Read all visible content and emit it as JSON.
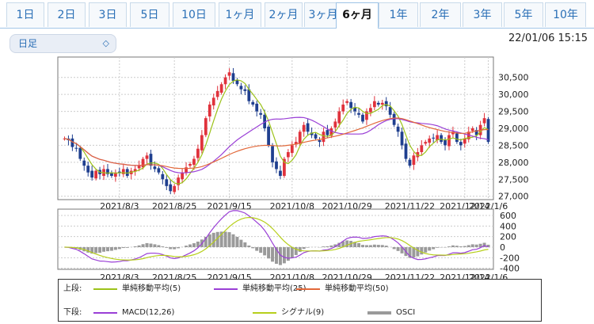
{
  "tabs": [
    {
      "label": "1日"
    },
    {
      "label": "2日"
    },
    {
      "label": "3日"
    },
    {
      "label": "5日"
    },
    {
      "label": "10日"
    },
    {
      "label": "1ヶ月"
    },
    {
      "label": "2ヶ月"
    },
    {
      "label": "3ヶ月"
    },
    {
      "label": "6ヶ月",
      "active": true
    },
    {
      "label": "1年"
    },
    {
      "label": "2年"
    },
    {
      "label": "3年"
    },
    {
      "label": "5年"
    },
    {
      "label": "10年"
    }
  ],
  "period_select": {
    "value": "日足",
    "icon": "updown-chevron-icon"
  },
  "timestamp": "22/01/06 15:15",
  "colors": {
    "up": "#e0323c",
    "down": "#1f3f8f",
    "ma5": "#9cc21a",
    "ma25": "#9a3fd6",
    "ma50": "#e2683a",
    "macd": "#9a3fd6",
    "signal": "#b7cf1c",
    "osci": "#9a9a9a"
  },
  "legend": {
    "upper_label": "上段:",
    "lower_label": "下段:",
    "upper": [
      {
        "name": "単純移動平均(5)",
        "color": "#9cc21a"
      },
      {
        "name": "単純移動平均(25)",
        "color": "#9a3fd6"
      },
      {
        "name": "単純移動平均(50)",
        "color": "#e2683a"
      }
    ],
    "lower": [
      {
        "name": "MACD(12,26)",
        "color": "#9a3fd6"
      },
      {
        "name": "シグナル(9)",
        "color": "#b7cf1c"
      },
      {
        "name": "OSCI",
        "color": "#9a9a9a"
      }
    ]
  },
  "chart_data": [
    {
      "type": "candlestick",
      "ylim": [
        26900,
        31100
      ],
      "y_ticks": [
        "27,000",
        "27,500",
        "28,000",
        "28,500",
        "29,000",
        "29,500",
        "30,000",
        "30,500"
      ],
      "x_tick_labels": [
        "2021/8/3",
        "2021/8/25",
        "2021/9/15",
        "2021/10/8",
        "2021/10/29",
        "2021/11/22",
        "2021/12/14",
        "2022/1/6"
      ],
      "grid": true,
      "closes": [
        28700,
        28650,
        28450,
        28400,
        28100,
        27900,
        27700,
        27550,
        27750,
        27650,
        27800,
        27650,
        27600,
        27700,
        27700,
        27800,
        27600,
        27750,
        27800,
        27900,
        28100,
        28200,
        27900,
        27800,
        27700,
        27500,
        27300,
        27150,
        27300,
        27550,
        27700,
        27850,
        27950,
        28100,
        28400,
        28800,
        29300,
        29700,
        29900,
        30100,
        30300,
        30500,
        30650,
        30400,
        30300,
        30150,
        30100,
        29800,
        29700,
        29500,
        29400,
        29000,
        28500,
        28000,
        27800,
        27600,
        28100,
        28300,
        28500,
        28600,
        28900,
        29100,
        28900,
        28800,
        28700,
        28600,
        28900,
        28800,
        29000,
        29200,
        29500,
        29700,
        29800,
        29600,
        29500,
        29400,
        29200,
        29500,
        29600,
        29800,
        29700,
        29750,
        29650,
        29400,
        29100,
        28900,
        28500,
        28100,
        27900,
        28200,
        28300,
        28500,
        28600,
        28700,
        28700,
        28800,
        28600,
        28500,
        28800,
        28900,
        28600,
        28500,
        28700,
        28900,
        29000,
        28800,
        29100,
        29300,
        28600
      ],
      "ma_note": "moving averages computed from closes",
      "ma5": [],
      "ma25": [],
      "ma50": []
    },
    {
      "type": "macd",
      "ylim": [
        -420,
        720
      ],
      "y_ticks": [
        "600",
        "400",
        "200",
        "0",
        "-200",
        "-400"
      ],
      "series": [
        {
          "name": "MACD(12,26)"
        },
        {
          "name": "シグナル(9)"
        },
        {
          "name": "OSCI"
        }
      ]
    }
  ]
}
